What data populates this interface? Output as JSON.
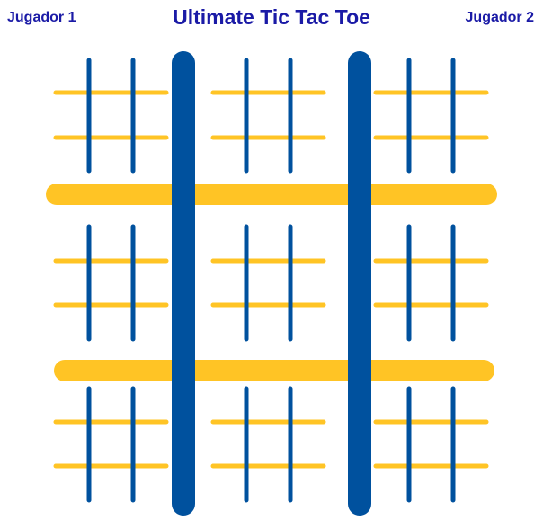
{
  "header": {
    "player1": "Jugador 1",
    "title": "Ultimate Tic Tac Toe",
    "player2": "Jugador 2"
  },
  "colors": {
    "blue": "#00519e",
    "yellow": "#ffc425",
    "text": "#1a1aa6"
  },
  "board": {
    "outer_rows": 3,
    "outer_cols": 3,
    "inner_rows": 3,
    "inner_cols": 3,
    "cells_marked": 0
  }
}
